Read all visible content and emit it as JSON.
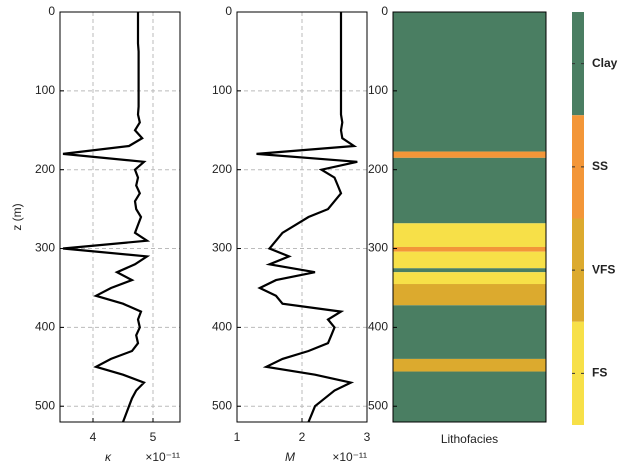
{
  "chart_data": [
    {
      "type": "line",
      "xlabel": "κ",
      "x_multiplier": "×10⁻¹¹",
      "ylabel": "z (m)",
      "color": "#000000",
      "xlim": [
        3.45,
        5.45
      ],
      "xticks": [
        4,
        5
      ],
      "ylim": [
        0,
        520
      ],
      "yticks": [
        0,
        100,
        200,
        300,
        400,
        500
      ],
      "y_inverted": true,
      "grid": true,
      "y": [
        0,
        10,
        20,
        30,
        40,
        50,
        60,
        70,
        80,
        90,
        100,
        110,
        120,
        130,
        140,
        150,
        160,
        170,
        180,
        190,
        200,
        210,
        220,
        230,
        240,
        250,
        260,
        270,
        280,
        290,
        300,
        310,
        320,
        330,
        340,
        350,
        360,
        370,
        380,
        390,
        400,
        410,
        420,
        430,
        440,
        450,
        460,
        470,
        480,
        490,
        500,
        510,
        520
      ],
      "values": [
        4.75,
        4.75,
        4.75,
        4.75,
        4.75,
        4.76,
        4.76,
        4.76,
        4.76,
        4.76,
        4.76,
        4.76,
        4.76,
        4.75,
        4.78,
        4.7,
        4.82,
        4.6,
        3.5,
        4.85,
        4.7,
        4.75,
        4.72,
        4.78,
        4.7,
        4.72,
        4.8,
        4.75,
        4.7,
        4.9,
        3.5,
        4.9,
        4.7,
        4.4,
        4.65,
        4.3,
        4.05,
        4.5,
        4.8,
        4.75,
        4.78,
        4.72,
        4.75,
        4.65,
        4.3,
        4.05,
        4.5,
        4.85,
        4.72,
        4.65,
        4.6,
        4.55,
        4.5
      ]
    },
    {
      "type": "line",
      "xlabel": "M",
      "x_multiplier": "×10⁻¹¹",
      "color": "#000000",
      "xlim": [
        1,
        3
      ],
      "xticks": [
        1,
        2,
        3
      ],
      "ylim": [
        0,
        520
      ],
      "yticks": [
        0,
        100,
        200,
        300,
        400,
        500
      ],
      "y_inverted": true,
      "grid": true,
      "y": [
        0,
        10,
        20,
        30,
        40,
        50,
        60,
        70,
        80,
        90,
        100,
        110,
        120,
        130,
        140,
        150,
        160,
        170,
        180,
        190,
        200,
        210,
        220,
        230,
        240,
        250,
        260,
        270,
        280,
        290,
        300,
        310,
        320,
        330,
        340,
        350,
        360,
        370,
        380,
        390,
        400,
        410,
        420,
        430,
        440,
        450,
        460,
        470,
        480,
        490,
        500,
        510,
        520
      ],
      "values": [
        2.6,
        2.6,
        2.6,
        2.6,
        2.6,
        2.6,
        2.6,
        2.6,
        2.6,
        2.6,
        2.6,
        2.6,
        2.6,
        2.6,
        2.62,
        2.6,
        2.62,
        2.8,
        1.3,
        2.85,
        2.3,
        2.5,
        2.55,
        2.6,
        2.5,
        2.4,
        2.1,
        1.9,
        1.7,
        1.6,
        1.5,
        1.8,
        1.5,
        2.2,
        1.6,
        1.35,
        1.6,
        1.7,
        2.6,
        2.4,
        2.5,
        2.45,
        2.4,
        2.1,
        1.7,
        1.45,
        2.2,
        2.75,
        2.5,
        2.35,
        2.2,
        2.15,
        2.1
      ]
    },
    {
      "type": "facies",
      "xlabel": "Lithofacies",
      "ylim": [
        0,
        520
      ],
      "yticks": [
        0,
        100,
        200,
        300,
        400,
        500
      ],
      "y_inverted": true,
      "legend": [
        {
          "name": "Clay",
          "color": "#4a7e62"
        },
        {
          "name": "SS",
          "color": "#f39638"
        },
        {
          "name": "VFS",
          "color": "#dcaa2e"
        },
        {
          "name": "FS",
          "color": "#f7e048"
        }
      ],
      "intervals": [
        {
          "top": 0,
          "bottom": 177,
          "facies": "Clay"
        },
        {
          "top": 177,
          "bottom": 185,
          "facies": "SS"
        },
        {
          "top": 185,
          "bottom": 268,
          "facies": "Clay"
        },
        {
          "top": 268,
          "bottom": 298,
          "facies": "FS"
        },
        {
          "top": 298,
          "bottom": 304,
          "facies": "SS"
        },
        {
          "top": 304,
          "bottom": 325,
          "facies": "FS"
        },
        {
          "top": 325,
          "bottom": 330,
          "facies": "Clay"
        },
        {
          "top": 330,
          "bottom": 345,
          "facies": "FS"
        },
        {
          "top": 345,
          "bottom": 372,
          "facies": "VFS"
        },
        {
          "top": 372,
          "bottom": 440,
          "facies": "Clay"
        },
        {
          "top": 440,
          "bottom": 456,
          "facies": "VFS"
        },
        {
          "top": 456,
          "bottom": 520,
          "facies": "Clay"
        }
      ]
    }
  ]
}
